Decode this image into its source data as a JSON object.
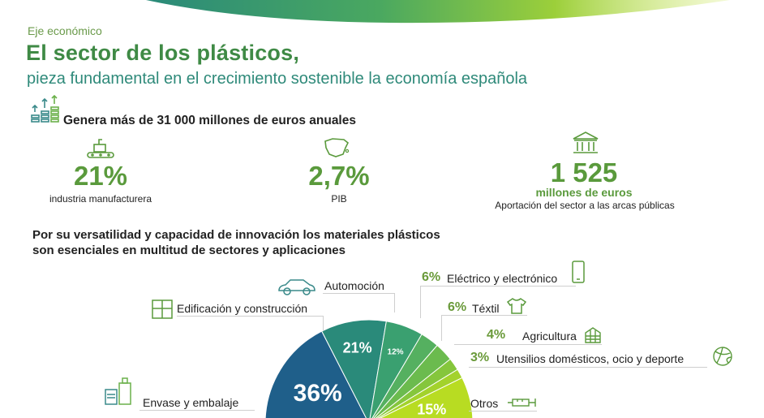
{
  "header": {
    "section": "Eje económico",
    "title": "El sector de los plásticos,",
    "subtitle": "pieza fundamental en el crecimiento sostenible la economía española"
  },
  "economy": {
    "headline": "Genera más de 31 000 millones de euros anuales",
    "stats": [
      {
        "value": "21%",
        "label": "industria manufacturera"
      },
      {
        "value": "2,7%",
        "label": "PIB"
      },
      {
        "value": "1 525",
        "unit": "millones de euros",
        "label": "Aportación del sector a las arcas públicas"
      }
    ]
  },
  "versatility": {
    "line1": "Por su versatilidad y capacidad de innovación los materiales plásticos",
    "line2": "son esenciales en multitud de sectores y aplicaciones"
  },
  "colors": {
    "accent": "#5a9a3c",
    "title": "#3f8a45",
    "subtitle": "#2f8a7a"
  },
  "chart_data": {
    "type": "pie",
    "categories": [
      "Envase y embalaje",
      "Edificación y construcción",
      "Automoción",
      "Eléctrico y electrónico",
      "Téxtil",
      "Agricultura",
      "Utensilios domésticos, ocio y deporte",
      "Otros"
    ],
    "values": [
      36,
      21,
      12,
      6,
      6,
      4,
      3,
      15
    ],
    "value_labels": [
      "36%",
      "21%",
      "12%",
      "6%",
      "6%",
      "4%",
      "3%",
      "15%"
    ],
    "colors": [
      "#1f5f8a",
      "#2a8a7a",
      "#3aa070",
      "#55b060",
      "#6bbb4e",
      "#85c63c",
      "#a3d22c",
      "#b8dc22"
    ],
    "icons": [
      "container-icon",
      "window-icon",
      "car-icon",
      "smartphone-icon",
      "tshirt-icon",
      "greenhouse-icon",
      "ball-icon",
      "syringe-icon"
    ]
  }
}
